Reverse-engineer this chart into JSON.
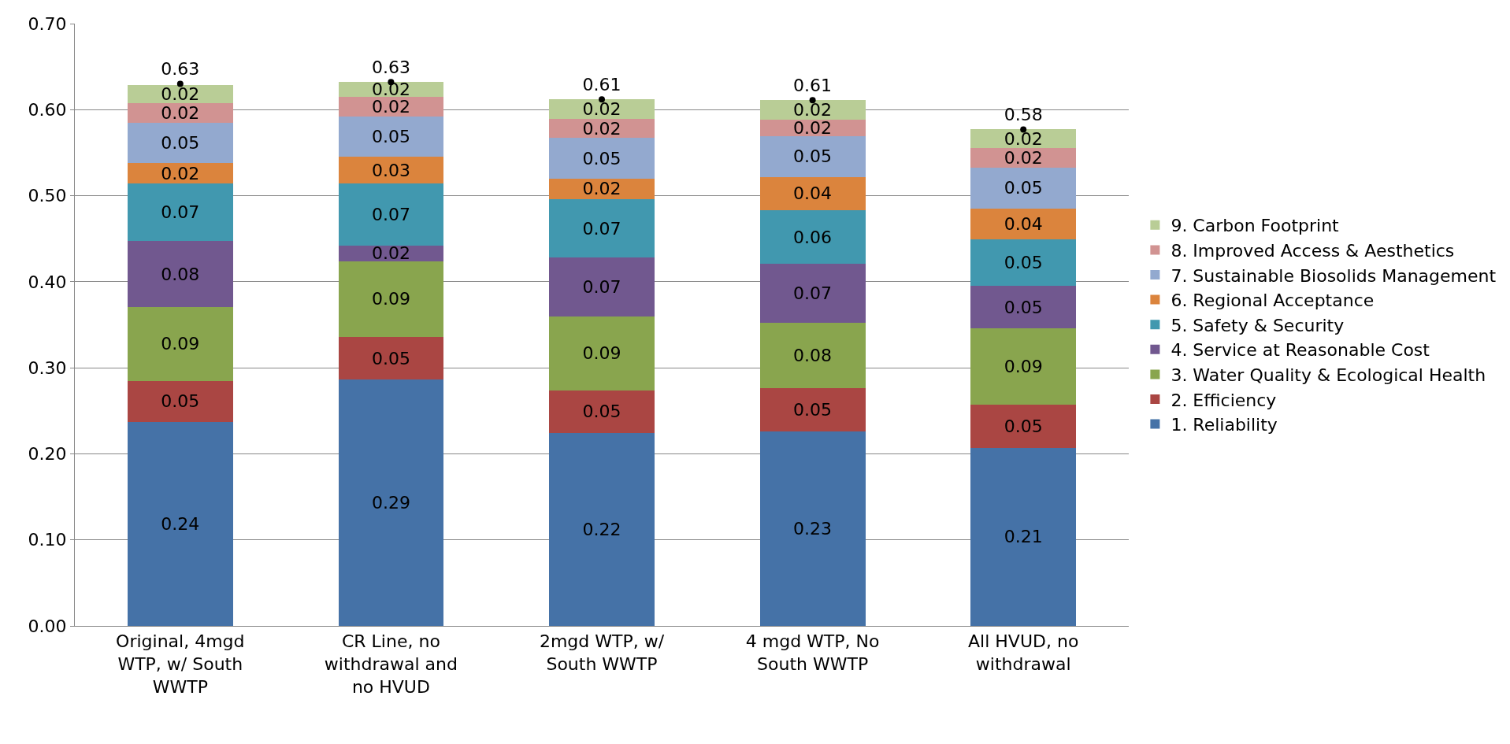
{
  "chart_data": {
    "type": "bar",
    "stacked": true,
    "categories": [
      "Original, 4mgd WTP, w/ South WWTP",
      "CR Line, no withdrawal and no HVUD",
      "2mgd WTP, w/ South WWTP",
      "4 mgd WTP, No South WWTP",
      "All HVUD, no withdrawal"
    ],
    "series": [
      {
        "name": "1. Reliability",
        "color": "#4572a7",
        "values": [
          0.237,
          0.286,
          0.224,
          0.226,
          0.207
        ],
        "value_labels": [
          "0.24",
          "0.29",
          "0.22",
          "0.23",
          "0.21"
        ]
      },
      {
        "name": "2. Efficiency",
        "color": "#aa4643",
        "values": [
          0.048,
          0.05,
          0.05,
          0.05,
          0.05
        ],
        "value_labels": [
          "0.05",
          "0.05",
          "0.05",
          "0.05",
          "0.05"
        ]
      },
      {
        "name": "3. Water Quality & Ecological Health",
        "color": "#89a54e",
        "values": [
          0.086,
          0.088,
          0.086,
          0.076,
          0.089
        ],
        "value_labels": [
          "0.09",
          "0.09",
          "0.09",
          "0.08",
          "0.09"
        ]
      },
      {
        "name": "4. Service at Reasonable Cost",
        "color": "#71588f",
        "values": [
          0.076,
          0.018,
          0.068,
          0.069,
          0.049
        ],
        "value_labels": [
          "0.08",
          "0.02",
          "0.07",
          "0.07",
          "0.05"
        ]
      },
      {
        "name": "5. Safety & Security",
        "color": "#4198af",
        "values": [
          0.067,
          0.072,
          0.068,
          0.062,
          0.054
        ],
        "value_labels": [
          "0.07",
          "0.07",
          "0.07",
          "0.06",
          "0.05"
        ]
      },
      {
        "name": "6. Regional Acceptance",
        "color": "#db843d",
        "values": [
          0.024,
          0.031,
          0.024,
          0.039,
          0.036
        ],
        "value_labels": [
          "0.02",
          "0.03",
          "0.02",
          "0.04",
          "0.04"
        ]
      },
      {
        "name": "7. Sustainable Biosolids Management",
        "color": "#93a9cf",
        "values": [
          0.047,
          0.047,
          0.047,
          0.047,
          0.048
        ],
        "value_labels": [
          "0.05",
          "0.05",
          "0.05",
          "0.05",
          "0.05"
        ]
      },
      {
        "name": "8. Improved Access & Aesthetics",
        "color": "#d19392",
        "values": [
          0.023,
          0.023,
          0.022,
          0.019,
          0.022
        ],
        "value_labels": [
          "0.02",
          "0.02",
          "0.02",
          "0.02",
          "0.02"
        ]
      },
      {
        "name": "9. Carbon Footprint",
        "color": "#b9cd96",
        "values": [
          0.021,
          0.017,
          0.023,
          0.023,
          0.022
        ],
        "value_labels": [
          "0.02",
          "0.02",
          "0.02",
          "0.02",
          "0.02"
        ]
      },
      {
        "type": "scatter",
        "color": "#000000",
        "marker": "circle",
        "values": [
          0.63,
          0.632,
          0.612,
          0.611,
          0.577
        ],
        "value_labels": [
          "0.63",
          "0.63",
          "0.61",
          "0.61",
          "0.58"
        ]
      }
    ],
    "ylim": [
      0,
      0.7
    ],
    "yticks": [
      {
        "value": 0,
        "label": "0.00"
      },
      {
        "value": 0.1,
        "label": "0.10"
      },
      {
        "value": 0.2,
        "label": "0.20"
      },
      {
        "value": 0.3,
        "label": "0.30"
      },
      {
        "value": 0.4,
        "label": "0.40"
      },
      {
        "value": 0.5,
        "label": "0.50"
      },
      {
        "value": 0.6,
        "label": "0.60"
      },
      {
        "value": 0.7,
        "label": "0.70"
      }
    ],
    "grid": "y",
    "legend": "right"
  }
}
